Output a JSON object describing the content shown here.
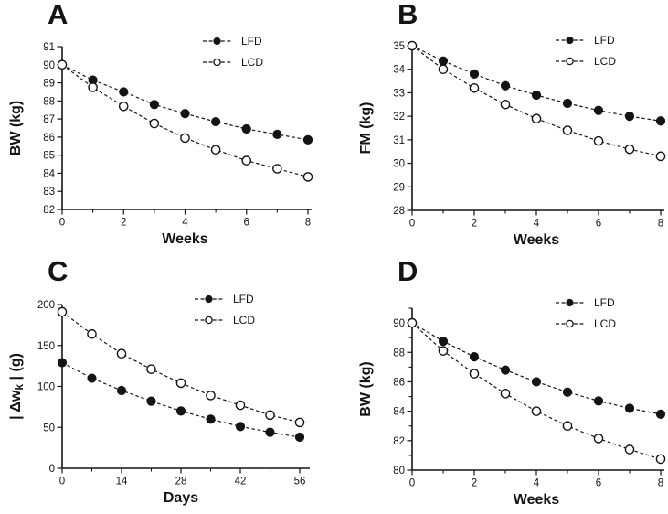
{
  "figure": {
    "background": "#ffffff",
    "ink_color": "#141414",
    "open_marker_fill": "#ffffff",
    "line_style": "dashed"
  },
  "chart_data": [
    {
      "panel": "A",
      "type": "line",
      "title": "",
      "xlabel": "Weeks",
      "ylabel": "BW (kg)",
      "xlim": [
        0,
        8
      ],
      "ylim": [
        82,
        91
      ],
      "xticks_major": [
        0,
        2,
        4,
        6,
        8
      ],
      "xticks_minor": [
        1,
        3,
        5,
        7
      ],
      "yticks_major": [
        82,
        83,
        84,
        85,
        86,
        87,
        88,
        89,
        90,
        91
      ],
      "yticks_minor": [],
      "grid": false,
      "legend_position": "upper right",
      "x": [
        0,
        1,
        2,
        3,
        4,
        5,
        6,
        7,
        8
      ],
      "series": [
        {
          "name": "LFD",
          "marker": "filled-circle",
          "values": [
            90.0,
            89.15,
            88.5,
            87.8,
            87.3,
            86.85,
            86.45,
            86.15,
            85.85
          ]
        },
        {
          "name": "LCD",
          "marker": "open-circle",
          "values": [
            90.0,
            88.75,
            87.7,
            86.75,
            85.95,
            85.3,
            84.7,
            84.25,
            83.8
          ]
        }
      ]
    },
    {
      "panel": "B",
      "type": "line",
      "title": "",
      "xlabel": "Weeks",
      "ylabel": "FM (kg)",
      "xlim": [
        0,
        8
      ],
      "ylim": [
        28,
        35
      ],
      "xticks_major": [
        0,
        2,
        4,
        6,
        8
      ],
      "xticks_minor": [
        1,
        3,
        5,
        7
      ],
      "yticks_major": [
        28,
        29,
        30,
        31,
        32,
        33,
        34,
        35
      ],
      "yticks_minor": [],
      "grid": false,
      "legend_position": "upper right",
      "x": [
        0,
        1,
        2,
        3,
        4,
        5,
        6,
        7,
        8
      ],
      "series": [
        {
          "name": "LFD",
          "marker": "filled-circle",
          "values": [
            35.0,
            34.35,
            33.8,
            33.3,
            32.9,
            32.55,
            32.25,
            32.0,
            31.8
          ]
        },
        {
          "name": "LCD",
          "marker": "open-circle",
          "values": [
            35.0,
            34.0,
            33.2,
            32.5,
            31.9,
            31.4,
            30.95,
            30.6,
            30.3
          ]
        }
      ]
    },
    {
      "panel": "C",
      "type": "line",
      "title": "",
      "xlabel": "Days",
      "ylabel": "| Δw_k | (g)",
      "xlim": [
        0,
        56
      ],
      "ylim": [
        0,
        200
      ],
      "xticks_major": [
        0,
        14,
        28,
        42,
        56
      ],
      "xticks_minor": [
        7,
        21,
        35,
        49
      ],
      "yticks_major": [
        0,
        50,
        100,
        150,
        200
      ],
      "yticks_minor": [],
      "grid": false,
      "legend_position": "upper right",
      "x": [
        0,
        7,
        14,
        21,
        28,
        35,
        42,
        49,
        56
      ],
      "series": [
        {
          "name": "LFD",
          "marker": "filled-circle",
          "values": [
            129,
            110,
            95,
            82,
            70,
            60,
            51,
            44,
            38
          ]
        },
        {
          "name": "LCD",
          "marker": "open-circle",
          "values": [
            191,
            164,
            140,
            121,
            104,
            89,
            77,
            65,
            56
          ]
        }
      ]
    },
    {
      "panel": "D",
      "type": "line",
      "title": "",
      "xlabel": "Weeks",
      "ylabel": "BW (kg)",
      "xlim": [
        0,
        8
      ],
      "ylim": [
        80,
        91
      ],
      "xticks_major": [
        0,
        2,
        4,
        6,
        8
      ],
      "xticks_minor": [
        1,
        3,
        5,
        7
      ],
      "yticks_major": [
        80,
        82,
        84,
        86,
        88,
        90
      ],
      "yticks_minor": [
        81,
        83,
        85,
        87,
        89,
        91
      ],
      "grid": false,
      "legend_position": "upper right",
      "x": [
        0,
        1,
        2,
        3,
        4,
        5,
        6,
        7,
        8
      ],
      "series": [
        {
          "name": "LFD",
          "marker": "filled-circle",
          "values": [
            90.0,
            88.75,
            87.7,
            86.8,
            86.0,
            85.3,
            84.7,
            84.2,
            83.8
          ]
        },
        {
          "name": "LCD",
          "marker": "open-circle",
          "values": [
            90.0,
            88.1,
            86.55,
            85.2,
            84.0,
            83.0,
            82.15,
            81.4,
            80.75
          ]
        }
      ]
    }
  ]
}
